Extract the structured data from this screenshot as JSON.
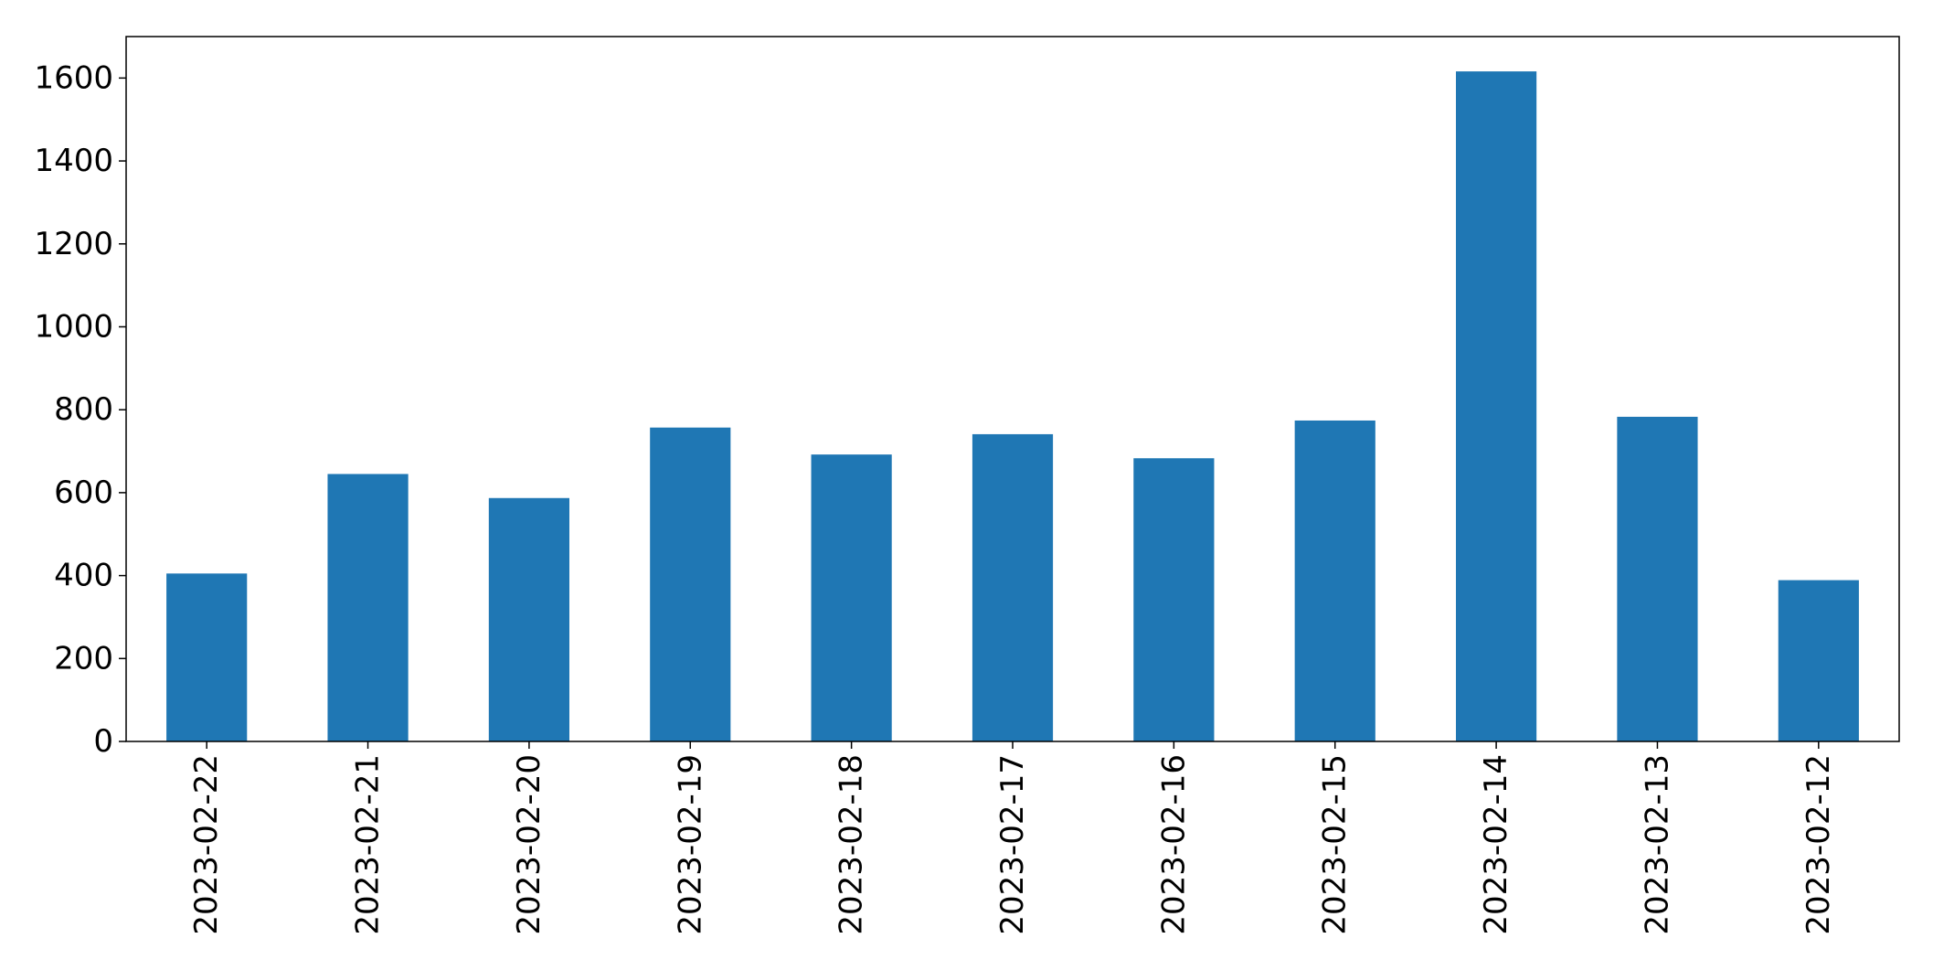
{
  "chart_data": {
    "type": "bar",
    "categories": [
      "2023-02-22",
      "2023-02-21",
      "2023-02-20",
      "2023-02-19",
      "2023-02-18",
      "2023-02-17",
      "2023-02-16",
      "2023-02-15",
      "2023-02-14",
      "2023-02-13",
      "2023-02-12"
    ],
    "values": [
      405,
      645,
      587,
      757,
      692,
      741,
      683,
      774,
      1616,
      783,
      389
    ],
    "title": "",
    "xlabel": "",
    "ylabel": "",
    "ylim": [
      0,
      1700
    ],
    "yticks": [
      0,
      200,
      400,
      600,
      800,
      1000,
      1200,
      1400,
      1600
    ],
    "bar_color": "#1f77b4",
    "grid": false,
    "legend": false
  }
}
